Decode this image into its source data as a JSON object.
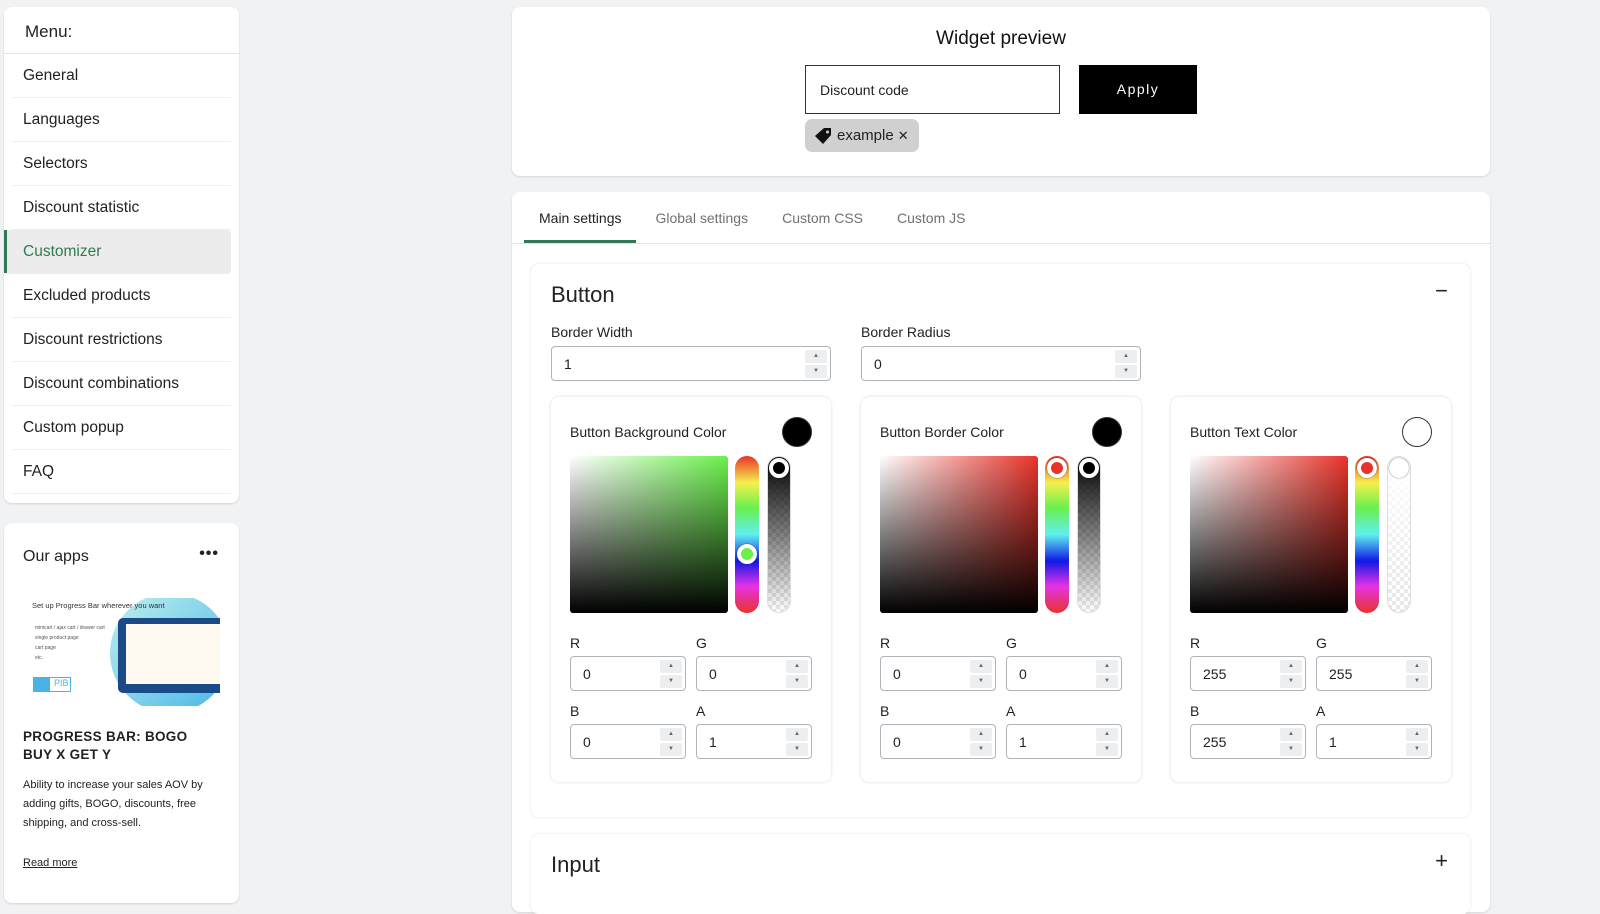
{
  "menu": {
    "title": "Menu:",
    "items": [
      {
        "label": "General"
      },
      {
        "label": "Languages"
      },
      {
        "label": "Selectors"
      },
      {
        "label": "Discount statistic"
      },
      {
        "label": "Customizer",
        "active": true
      },
      {
        "label": "Excluded products"
      },
      {
        "label": "Discount restrictions"
      },
      {
        "label": "Discount combinations"
      },
      {
        "label": "Custom popup"
      },
      {
        "label": "FAQ"
      }
    ]
  },
  "apps": {
    "title": "Our apps",
    "more_icon": "ellipsis-icon",
    "promo": {
      "headline": "Set up Progress Bar wherever you want",
      "bullets": [
        "minicart / ajax cart / drawer cart",
        "single product page",
        "cart page",
        "etc."
      ],
      "logo": "PIB"
    },
    "app_name": "PROGRESS BAR: BOGO BUY X GET Y",
    "description": "Ability to increase your sales AOV by adding gifts, BOGO, discounts, free shipping, and cross-sell.",
    "link": "Read more"
  },
  "preview": {
    "title": "Widget preview",
    "input_placeholder": "Discount code",
    "apply": "Apply",
    "tag": "example",
    "tag_close": "✕"
  },
  "tabs": [
    {
      "label": "Main settings",
      "active": true
    },
    {
      "label": "Global settings"
    },
    {
      "label": "Custom CSS"
    },
    {
      "label": "Custom JS"
    }
  ],
  "button_section": {
    "title": "Button",
    "toggle": "−",
    "border_width_label": "Border Width",
    "border_width": "1",
    "border_radius_label": "Border Radius",
    "border_radius": "0",
    "pickers": [
      {
        "label": "Button Background Color",
        "swatch": "#000000",
        "hue_color": "#6af04c",
        "r": "0",
        "g": "0",
        "b": "0",
        "a": "1"
      },
      {
        "label": "Button Border Color",
        "swatch": "#000000",
        "hue_color": "#e8332a",
        "r": "0",
        "g": "0",
        "b": "0",
        "a": "1"
      },
      {
        "label": "Button Text Color",
        "swatch": "#ffffff",
        "hue_color": "#e8332a",
        "r": "255",
        "g": "255",
        "b": "255",
        "a": "1"
      }
    ],
    "labels": {
      "r": "R",
      "g": "G",
      "b": "B",
      "a": "A"
    }
  },
  "input_section": {
    "title": "Input",
    "toggle": "+"
  },
  "colors": {
    "accent": "#2f7a55"
  }
}
